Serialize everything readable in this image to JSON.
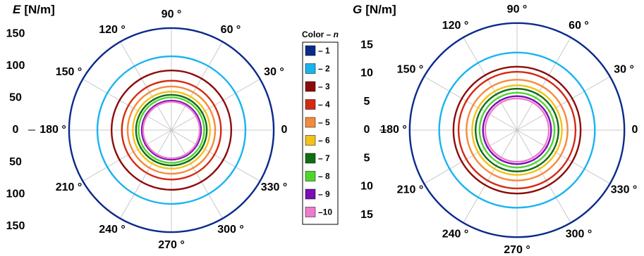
{
  "chart_data": [
    {
      "type": "polar",
      "ylabel": "E [N/m]",
      "ylabel_italic_part": "E",
      "ylabel_unit": "[N/m]",
      "r_max": 160,
      "r_ticks": [
        0,
        50,
        100,
        150
      ],
      "r_tick_labels_top": [
        "150",
        "100",
        "50",
        "0"
      ],
      "r_tick_labels_bottom": [
        "50",
        "100",
        "150"
      ],
      "angle_ticks": [
        0,
        30,
        60,
        90,
        120,
        150,
        180,
        210,
        240,
        270,
        300,
        330
      ],
      "angle_labels": [
        "0",
        "30 °",
        "60 °",
        "90 °",
        "120 °",
        "150 °",
        "180 °",
        "210 °",
        "240 °",
        "270 °",
        "300 °",
        "330 °"
      ],
      "series": [
        {
          "name": "– 1",
          "r": 159
        },
        {
          "name": "– 2",
          "r": 115
        },
        {
          "name": "– 3",
          "r": 93
        },
        {
          "name": "– 4",
          "r": 77
        },
        {
          "name": "– 5",
          "r": 68
        },
        {
          "name": "– 6",
          "r": 60
        },
        {
          "name": "– 7",
          "r": 55
        },
        {
          "name": "– 8",
          "r": 51
        },
        {
          "name": "– 9",
          "r": 46
        },
        {
          "name": "–10",
          "r": 44
        }
      ]
    },
    {
      "type": "polar",
      "ylabel": "G [N/m]",
      "ylabel_italic_part": "G",
      "ylabel_unit": "[N/m]",
      "r_max": 19,
      "r_ticks": [
        0,
        5,
        10,
        15
      ],
      "r_tick_labels_top": [
        "15",
        "10",
        "5",
        "0"
      ],
      "r_tick_labels_bottom": [
        "5",
        "10",
        "15"
      ],
      "angle_ticks": [
        0,
        30,
        60,
        90,
        120,
        150,
        180,
        210,
        240,
        270,
        300,
        330
      ],
      "angle_labels": [
        "0",
        "30 °",
        "60 °",
        "90 °",
        "120 °",
        "150 °",
        "180 °",
        "210 °",
        "240 °",
        "270 °",
        "300 °",
        "330 °"
      ],
      "series": [
        {
          "name": "– 1",
          "r": 18.9
        },
        {
          "name": "– 2",
          "r": 13.7
        },
        {
          "name": "– 3",
          "r": 11.2
        },
        {
          "name": "– 4",
          "r": 10.3
        },
        {
          "name": "– 5",
          "r": 8.9
        },
        {
          "name": "– 6",
          "r": 7.9
        },
        {
          "name": "– 7",
          "r": 7.3
        },
        {
          "name": "– 8",
          "r": 6.6
        },
        {
          "name": "– 9",
          "r": 6.0
        },
        {
          "name": "–10",
          "r": 5.6
        }
      ]
    }
  ],
  "legend": {
    "title": "Color – n",
    "title_plain": "Color – ",
    "title_italic": "n",
    "colors": [
      "#0b2a8c",
      "#19b4f0",
      "#8c0b0b",
      "#d42a12",
      "#f58a3c",
      "#f2c21a",
      "#0f6e12",
      "#4fd62a",
      "#7a0fb4",
      "#f07acd"
    ],
    "border_color": "#000000"
  },
  "style": {
    "grid_color": "#c8c8c8",
    "axis_color": "#000000"
  }
}
